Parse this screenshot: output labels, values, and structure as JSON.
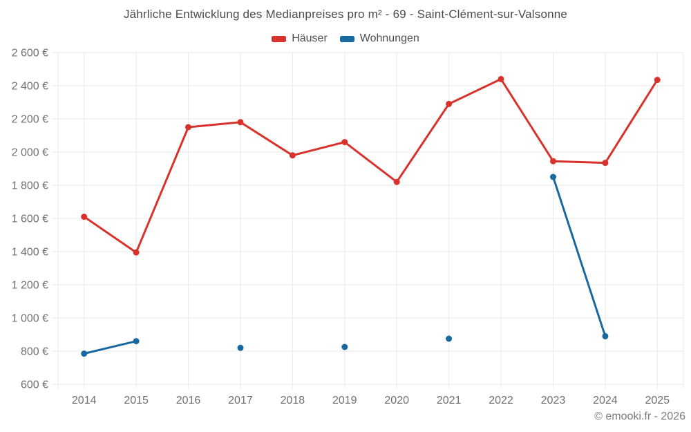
{
  "header": {
    "title": "Jährliche Entwicklung des Medianpreises pro m² - 69 - Saint-Clément-sur-Valsonne"
  },
  "legend": {
    "items": [
      {
        "label": "Häuser",
        "color": "#d8322c",
        "slug": "haeuser"
      },
      {
        "label": "Wohnungen",
        "color": "#1769a0",
        "slug": "wohnungen"
      }
    ]
  },
  "footer": {
    "text": "© emooki.fr - 2026"
  },
  "colors": {
    "background": "#ffffff",
    "grid": "#e9e9e9",
    "tick_text": "#6f6f6f",
    "title_text": "#4a4a4a",
    "legend_text": "#4f4f4f",
    "footer_text": "#7c7c7c",
    "hauser_red": "#d8322c",
    "wohnungen_blue": "#1769a0"
  },
  "chart_data": {
    "type": "line",
    "title": "Jährliche Entwicklung des Medianpreises pro m² - 69 - Saint-Clément-sur-Valsonne",
    "x": [
      2014,
      2015,
      2016,
      2017,
      2018,
      2019,
      2020,
      2021,
      2022,
      2023,
      2024,
      2025
    ],
    "series": [
      {
        "name": "Häuser",
        "slug": "haeuser",
        "color": "#d8322c",
        "values": [
          1610,
          1395,
          2150,
          2180,
          1980,
          2060,
          1820,
          2290,
          2440,
          1945,
          1935,
          2435
        ]
      },
      {
        "name": "Wohnungen",
        "slug": "wohnungen",
        "color": "#1769a0",
        "values": [
          785,
          860,
          null,
          820,
          null,
          825,
          null,
          875,
          null,
          1850,
          890,
          null
        ]
      }
    ],
    "ylim": [
      600,
      2600
    ],
    "ytick_step": 200,
    "ytick_labels": [
      "600 €",
      "800 €",
      "1 000 €",
      "1 200 €",
      "1 400 €",
      "1 600 €",
      "1 800 €",
      "2 000 €",
      "2 200 €",
      "2 400 €",
      "2 600 €"
    ],
    "ylabel": "",
    "xlabel": "",
    "grid": true,
    "legend_position": "top",
    "span_gaps": false
  }
}
